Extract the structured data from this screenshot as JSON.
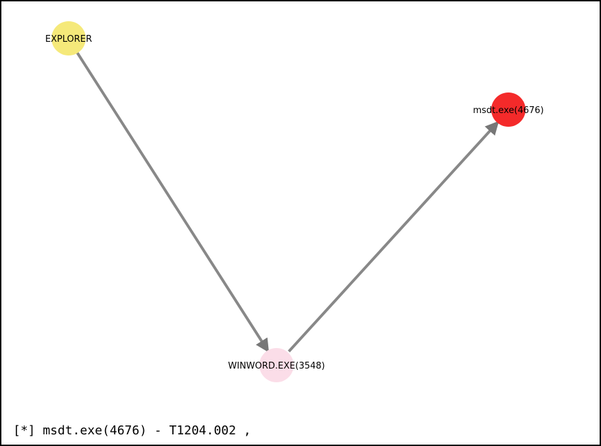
{
  "graph": {
    "nodes": [
      {
        "id": "explorer",
        "label": "EXPLORER",
        "color": "#f5e97a"
      },
      {
        "id": "winword",
        "label": "WINWORD.EXE(3548)",
        "color": "#fbdde8"
      },
      {
        "id": "msdt",
        "label": "msdt.exe(4676)",
        "color": "#f42a2a"
      }
    ],
    "edges": [
      {
        "from": "explorer",
        "to": "winword"
      },
      {
        "from": "winword",
        "to": "msdt"
      }
    ],
    "edge_color": "#888888"
  },
  "status": {
    "text": "[*] msdt.exe(4676) - T1204.002 ,"
  }
}
